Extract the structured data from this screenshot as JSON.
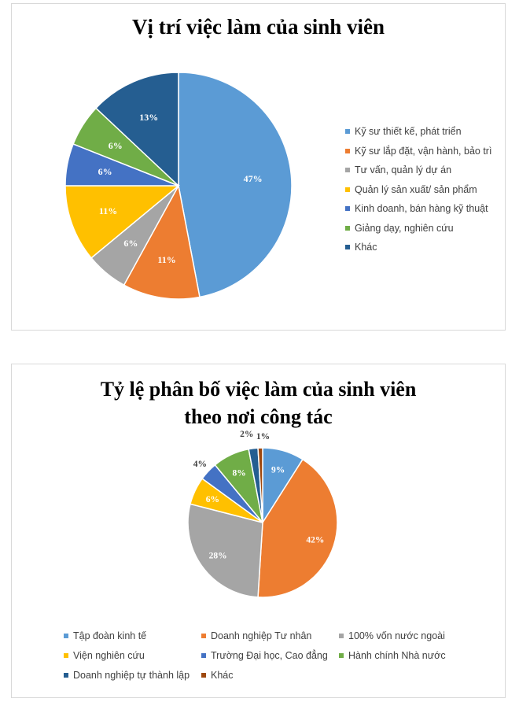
{
  "chart_data": [
    {
      "type": "pie",
      "title": "Vị trí việc làm của sinh viên",
      "categories": [
        "Kỹ sư thiết kế, phát triển",
        "Kỹ sư lắp đặt, vận hành, bảo trì",
        "Tư vấn, quản lý dự án",
        "Quản lý sản xuất/ sản phẩm",
        "Kinh doanh, bán hàng kỹ thuật",
        "Giảng dạy, nghiên cứu",
        "Khác"
      ],
      "values": [
        47,
        11,
        6,
        11,
        6,
        6,
        13
      ],
      "labels": [
        "47%",
        "11%",
        "6%",
        "11%",
        "6%",
        "6%",
        "13%"
      ],
      "colors": [
        "#5b9bd5",
        "#ed7d31",
        "#a5a5a5",
        "#ffc000",
        "#4472c4",
        "#70ad47",
        "#255e91"
      ],
      "legend_position": "right"
    },
    {
      "type": "pie",
      "title_lines": [
        "Tỷ lệ phân bố việc làm của sinh viên",
        "theo nơi công tác"
      ],
      "categories": [
        "Tập đoàn kinh tế",
        "Doanh nghiệp Tư nhân",
        "100% vốn nước ngoài",
        "Viện nghiên cứu",
        "Trường Đại học, Cao đẳng",
        "Hành chính Nhà nước",
        "Doanh nghiệp tự thành lập",
        "Khác"
      ],
      "values": [
        9,
        42,
        28,
        6,
        4,
        8,
        2,
        1
      ],
      "labels": [
        "9%",
        "42%",
        "28%",
        "6%",
        "4%",
        "8%",
        "2%",
        "1%"
      ],
      "colors": [
        "#5b9bd5",
        "#ed7d31",
        "#a5a5a5",
        "#ffc000",
        "#4472c4",
        "#70ad47",
        "#255e91",
        "#9e480e"
      ],
      "legend_position": "bottom"
    }
  ]
}
